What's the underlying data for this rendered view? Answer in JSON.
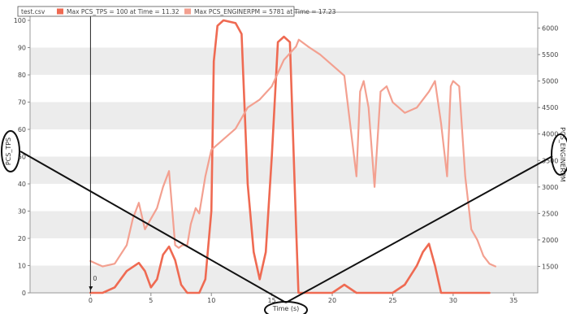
{
  "chart_data": {
    "type": "line",
    "legend": [
      {
        "text": "test.csv"
      },
      {
        "text": "Max PCS_TPS = 100 at Time = 11.32"
      },
      {
        "text": "Max PCS_ENGINERPM = 5781 at Time = 17.23"
      }
    ],
    "xlabel": "Time (s)",
    "ylabel_left": "PCS_TPS",
    "ylabel_right": "PCS_ENGINERPM",
    "xlim": [
      -5,
      37
    ],
    "ylim_left": [
      0,
      103
    ],
    "ylim_right": [
      1000,
      6300
    ],
    "x_ticks": [
      0,
      5,
      10,
      15,
      20,
      25,
      30,
      35
    ],
    "y_ticks_left": [
      0,
      10,
      20,
      30,
      40,
      50,
      60,
      70,
      80,
      90,
      100
    ],
    "y_ticks_right": [
      1500,
      2000,
      2500,
      3000,
      3500,
      4000,
      4500,
      5000,
      5500,
      6000
    ],
    "cursor_label": "0",
    "cursor_time": 0,
    "grid": "horizontal bands",
    "colors": {
      "tps": "#ef6a52",
      "rpm": "#f3a090",
      "band": "#ececec",
      "annotation": "#111111"
    },
    "series": [
      {
        "axis": "left",
        "x": [
          0,
          1,
          2,
          3,
          4,
          4.5,
          5,
          5.5,
          6,
          6.5,
          7,
          7.5,
          8,
          9,
          9.5,
          10,
          10.2,
          10.5,
          11,
          12,
          12.5,
          13,
          13.5,
          14,
          14.5,
          15,
          15.5,
          16,
          16.5,
          17,
          17.2,
          17.5,
          18,
          19,
          20,
          21,
          22,
          23,
          24,
          25,
          26,
          27,
          27.5,
          28,
          28.5,
          29,
          29.5,
          30,
          33
        ],
        "values": [
          0,
          0,
          2,
          8,
          11,
          8,
          2,
          5,
          14,
          17,
          12,
          3,
          0,
          0,
          5,
          30,
          85,
          98,
          100,
          99,
          95,
          40,
          15,
          5,
          15,
          50,
          92,
          94,
          92,
          25,
          0,
          0,
          0,
          0,
          0,
          3,
          0,
          0,
          0,
          0,
          3,
          10,
          15,
          18,
          10,
          0,
          0,
          0,
          0
        ]
      },
      {
        "axis": "right",
        "x": [
          0,
          0.5,
          1,
          2,
          3,
          3.5,
          4,
          4.5,
          5,
          5.5,
          6,
          6.5,
          7,
          7.3,
          7.6,
          8,
          8.3,
          8.7,
          9,
          9.5,
          10,
          11,
          12,
          13,
          14,
          15,
          16,
          17,
          17.23,
          18,
          19,
          20,
          21,
          22,
          22.3,
          22.6,
          23,
          23.5,
          24,
          24.5,
          25,
          25.5,
          26,
          27,
          28,
          28.5,
          29,
          29.5,
          29.8,
          30,
          30.5,
          31,
          31.5,
          32,
          32.5,
          33,
          33.5
        ],
        "values": [
          1600,
          1550,
          1500,
          1550,
          1900,
          2400,
          2700,
          2200,
          2400,
          2600,
          3000,
          3300,
          1900,
          1850,
          1900,
          1900,
          2300,
          2600,
          2500,
          3200,
          3700,
          3900,
          4100,
          4500,
          4650,
          4900,
          5400,
          5650,
          5781,
          5650,
          5500,
          5300,
          5100,
          3200,
          4800,
          5000,
          4500,
          3000,
          4800,
          4900,
          4600,
          4500,
          4400,
          4500,
          4800,
          5000,
          4200,
          3200,
          4900,
          5000,
          4900,
          3200,
          2200,
          2000,
          1700,
          1550,
          1500
        ]
      }
    ]
  }
}
